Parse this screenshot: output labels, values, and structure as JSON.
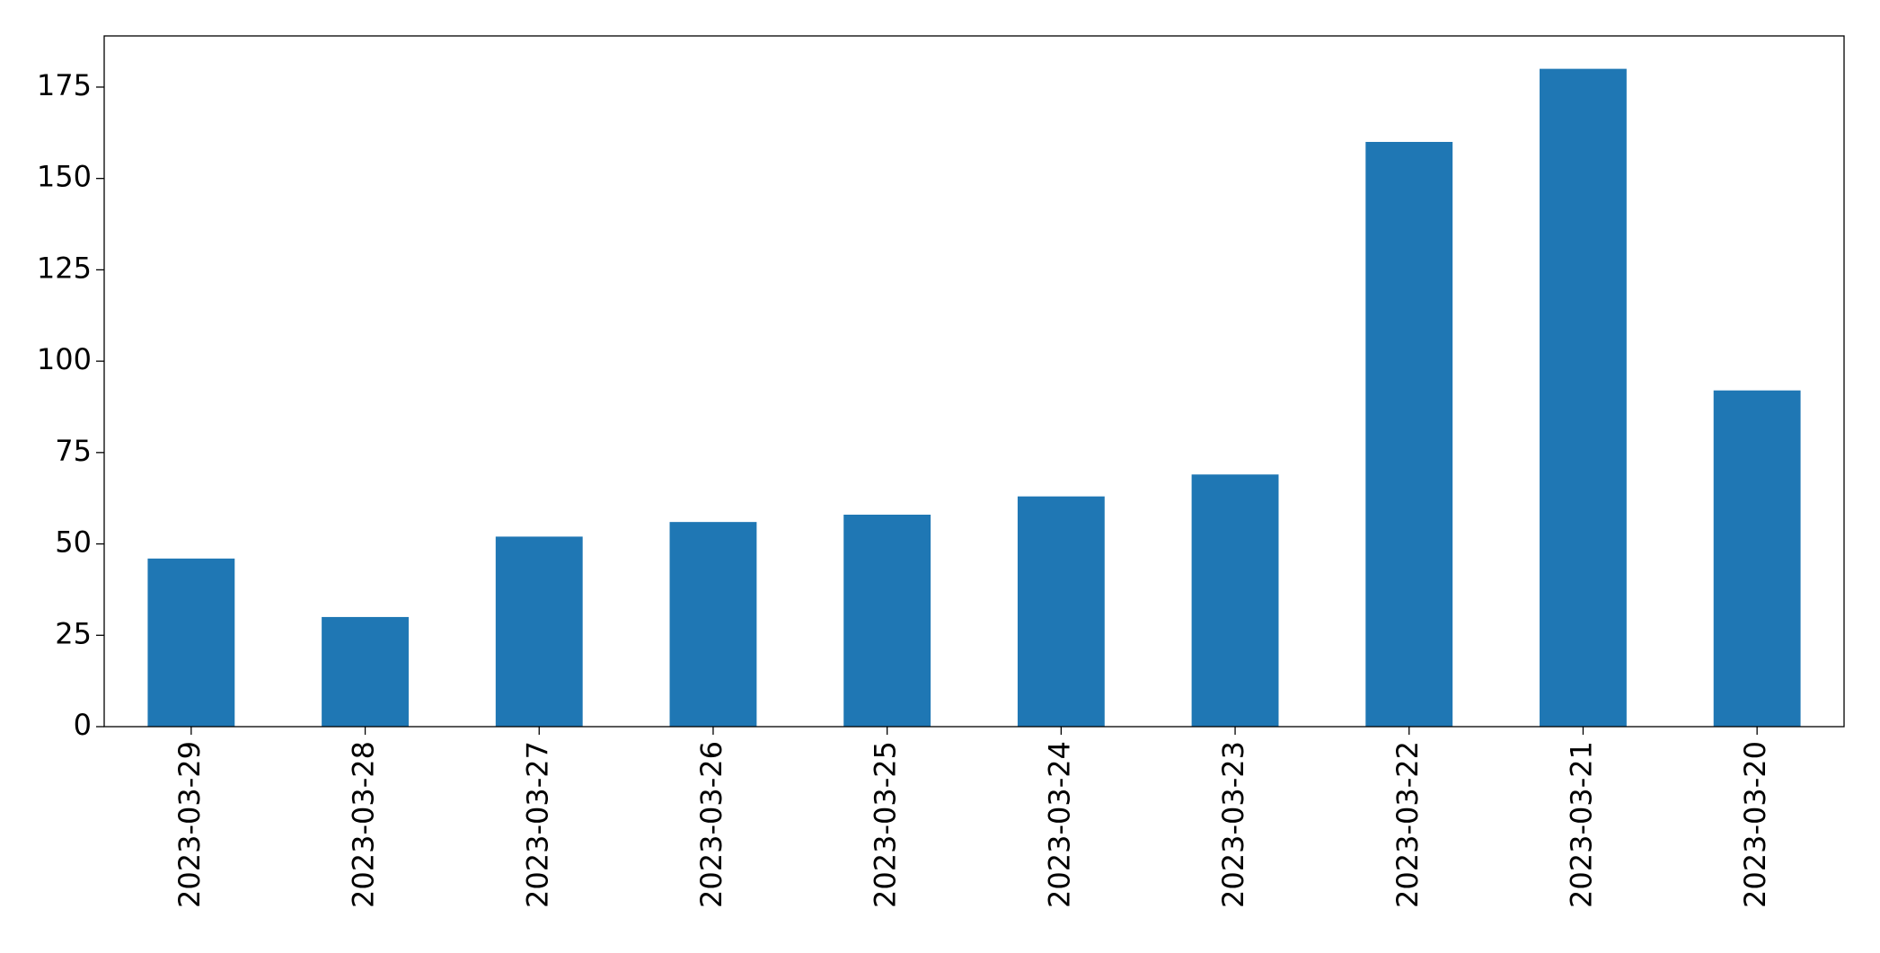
{
  "chart_data": {
    "type": "bar",
    "categories": [
      "2023-03-29",
      "2023-03-28",
      "2023-03-27",
      "2023-03-26",
      "2023-03-25",
      "2023-03-24",
      "2023-03-23",
      "2023-03-22",
      "2023-03-21",
      "2023-03-20"
    ],
    "values": [
      46,
      30,
      52,
      56,
      58,
      63,
      69,
      160,
      180,
      92
    ],
    "color": "#1f77b4",
    "ylim": [
      0,
      189
    ],
    "yticks": [
      0,
      25,
      50,
      75,
      100,
      125,
      150,
      175
    ],
    "grid": false
  }
}
